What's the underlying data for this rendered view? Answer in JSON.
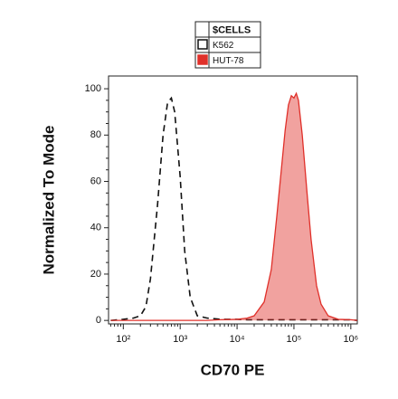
{
  "chart_data": {
    "type": "line",
    "xlabel": "CD70 PE",
    "ylabel": "Normalized To Mode",
    "xscale": "log",
    "xlim": [
      55,
      1300000
    ],
    "xticks": [
      {
        "value": 100,
        "label": "10²"
      },
      {
        "value": 1000,
        "label": "10³"
      },
      {
        "value": 10000,
        "label": "10⁴"
      },
      {
        "value": 100000,
        "label": "10⁵"
      },
      {
        "value": 1000000,
        "label": "10⁶"
      }
    ],
    "ylim": [
      -1.5,
      105.5
    ],
    "yticks": [
      0,
      20,
      40,
      60,
      80,
      100
    ],
    "legend_title": "$CELLS",
    "legend_position": "top",
    "x": [
      60,
      100,
      150,
      200,
      250,
      300,
      400,
      500,
      600,
      700,
      800,
      1000,
      1200,
      1500,
      2000,
      3000,
      5000,
      10000,
      15000,
      20000,
      30000,
      40000,
      50000,
      60000,
      70000,
      80000,
      90000,
      100000,
      110000,
      120000,
      140000,
      170000,
      200000,
      250000,
      300000,
      400000,
      600000,
      1000000,
      1300000
    ],
    "series": [
      {
        "name": "K562",
        "color": "#111111",
        "line_style": "dashed",
        "filled": false,
        "values": [
          0,
          0.5,
          1,
          2,
          6,
          18,
          50,
          80,
          94,
          96,
          90,
          62,
          30,
          10,
          2,
          1,
          0.5,
          0.5,
          0.3,
          0.3,
          0.3,
          0.3,
          0.3,
          0.3,
          0.3,
          0.3,
          0.3,
          0.3,
          0.3,
          0.3,
          0.3,
          0.3,
          0.3,
          0.3,
          0.3,
          0.3,
          0.3,
          0.3,
          0
        ]
      },
      {
        "name": "HUT-78",
        "color": "#e0302a",
        "line_style": "solid",
        "filled": true,
        "values": [
          0,
          0,
          0,
          0,
          0,
          0,
          0,
          0,
          0,
          0,
          0,
          0,
          0,
          0,
          0,
          0,
          0.3,
          0.5,
          1,
          2,
          8,
          22,
          45,
          65,
          82,
          93,
          97,
          96,
          98,
          95,
          80,
          55,
          35,
          15,
          7,
          2,
          0.5,
          0.3,
          0
        ]
      }
    ]
  }
}
